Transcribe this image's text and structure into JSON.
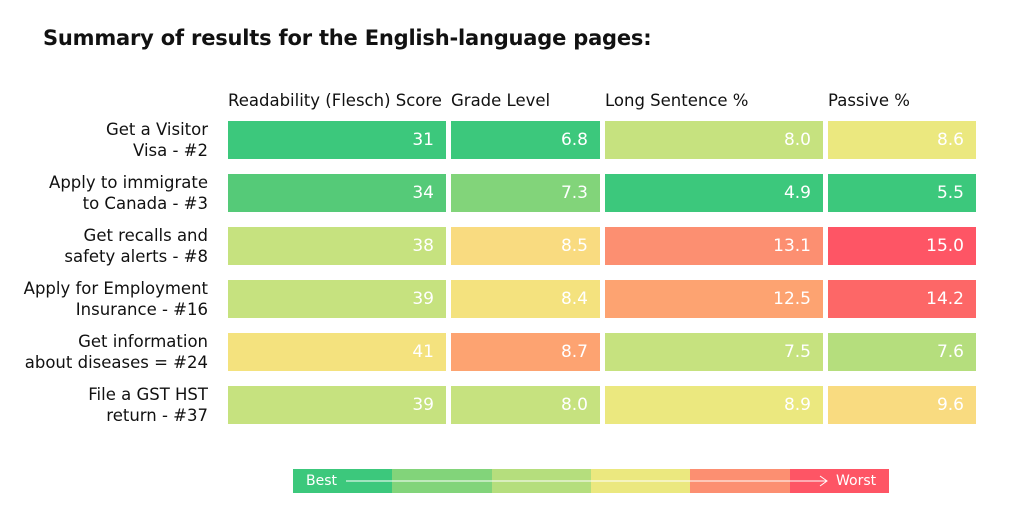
{
  "chart_data": {
    "type": "table",
    "title": "Summary of results for the English-language pages:",
    "columns": [
      "Readability (Flesch) Score",
      "Grade Level",
      "Long Sentence %",
      "Passive %"
    ],
    "rows": [
      {
        "label": [
          "Get a Visitor",
          "Visa - #2"
        ],
        "values": [
          "31",
          "6.8",
          "8.0",
          "8.6"
        ],
        "colors": [
          "#3cc87c",
          "#3cc87c",
          "#c6e27f",
          "#ebe87f"
        ]
      },
      {
        "label": [
          "Apply to immigrate",
          "to Canada - #3"
        ],
        "values": [
          "34",
          "7.3",
          "4.9",
          "5.5"
        ],
        "colors": [
          "#55ca78",
          "#82d47a",
          "#3cc87c",
          "#3cc87c"
        ]
      },
      {
        "label": [
          "Get recalls and",
          "safety alerts - #8"
        ],
        "values": [
          "38",
          "8.5",
          "13.1",
          "15.0"
        ],
        "colors": [
          "#c6e27f",
          "#f9db80",
          "#fc8f71",
          "#fe5565"
        ]
      },
      {
        "label": [
          "Apply for Employment",
          "Insurance - #16"
        ],
        "values": [
          "39",
          "8.4",
          "12.5",
          "14.2"
        ],
        "colors": [
          "#c6e27f",
          "#f4e27e",
          "#fda371",
          "#fd6767"
        ]
      },
      {
        "label": [
          "Get information",
          "about diseases = #24"
        ],
        "values": [
          "41",
          "8.7",
          "7.5",
          "7.6"
        ],
        "colors": [
          "#f4e27e",
          "#fda371",
          "#c6e27f",
          "#b5de7d"
        ]
      },
      {
        "label": [
          "File a GST HST",
          "return - #37"
        ],
        "values": [
          "39",
          "8.0",
          "8.9",
          "9.6"
        ],
        "colors": [
          "#c6e27f",
          "#c6e27f",
          "#ebe87f",
          "#f9db80"
        ]
      }
    ],
    "legend": {
      "best_label": "Best",
      "worst_label": "Worst",
      "colors": [
        "#3cc87c",
        "#82d47a",
        "#b5de7d",
        "#ebe87f",
        "#fc8f71",
        "#fe5565"
      ]
    }
  }
}
